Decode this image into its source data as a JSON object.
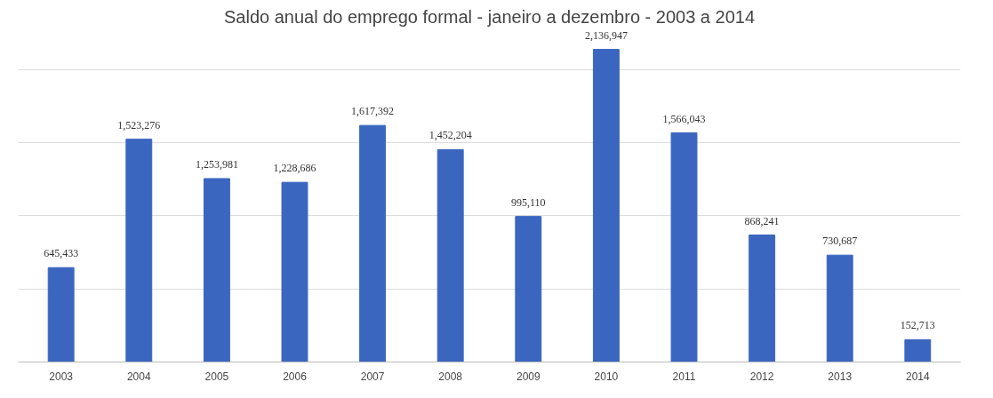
{
  "chart_data": {
    "type": "bar",
    "title": "Saldo anual do emprego formal - janeiro a dezembro - 2003 a 2014",
    "categories": [
      "2003",
      "2004",
      "2005",
      "2006",
      "2007",
      "2008",
      "2009",
      "2010",
      "2011",
      "2012",
      "2013",
      "2014"
    ],
    "values": [
      645433,
      1523276,
      1253981,
      1228686,
      1617392,
      1452204,
      995110,
      2136947,
      1566043,
      868241,
      730687,
      152713
    ],
    "value_labels": [
      "645,433",
      "1,523,276",
      "1,253,981",
      "1,228,686",
      "1,617,392",
      "1,452,204",
      "995,110",
      "2,136,947",
      "1,566,043",
      "868,241",
      "730,687",
      "152,713"
    ],
    "color": "#3a66c0",
    "tick_labels": "x",
    "grid": "y"
  }
}
